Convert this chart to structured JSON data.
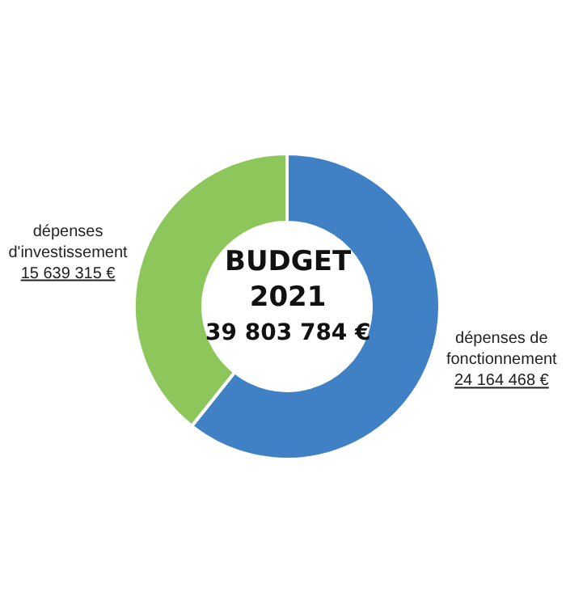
{
  "chart_data": {
    "type": "donut",
    "title": "BUDGET\n2021",
    "annotations": [
      "39 803 784 €"
    ],
    "categories": [
      "dépenses de fonctionnement",
      "dépenses d'investissement"
    ],
    "values": [
      24164468,
      15639315
    ],
    "colors": [
      "#4080c4",
      "#8dc65b"
    ],
    "value_labels": [
      "24 164 468 €",
      "15 639 315 €"
    ],
    "legend": false
  }
}
